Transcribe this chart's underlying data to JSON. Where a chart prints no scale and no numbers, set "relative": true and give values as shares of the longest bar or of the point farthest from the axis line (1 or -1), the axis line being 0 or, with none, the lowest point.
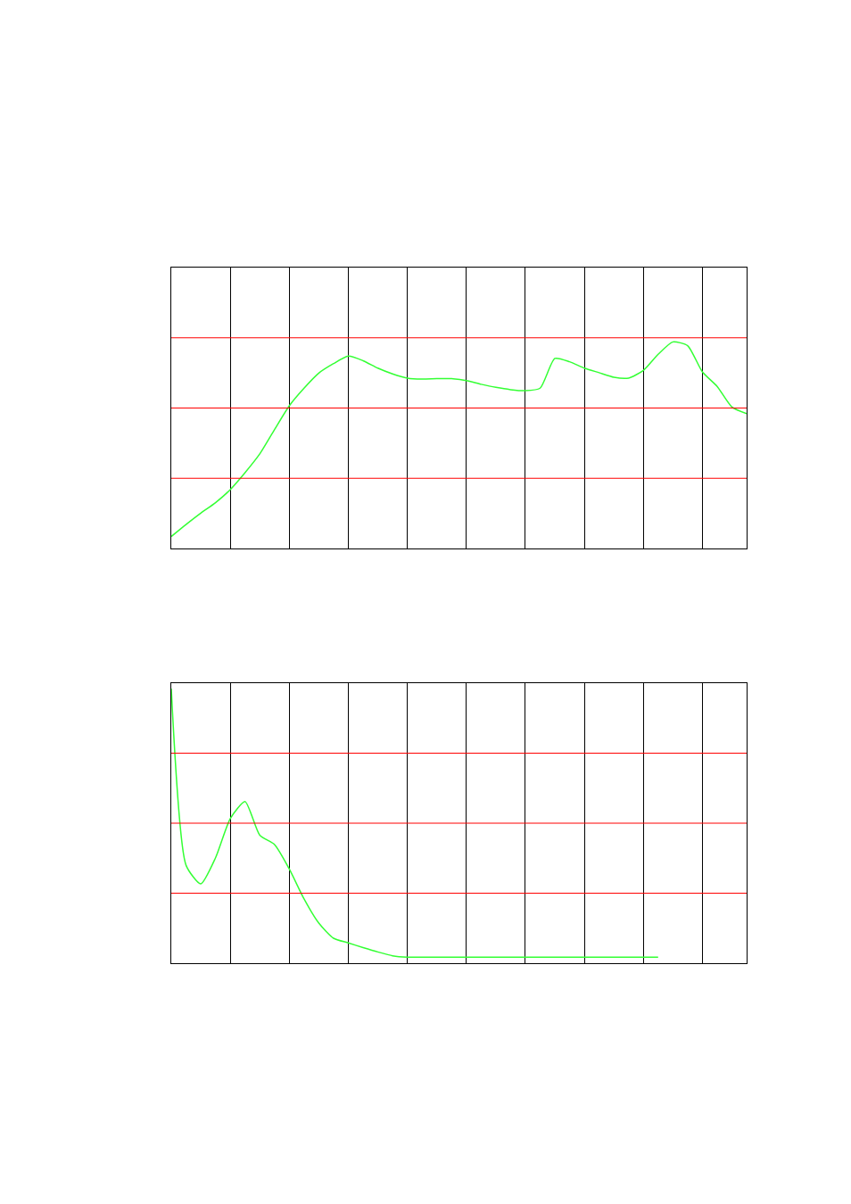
{
  "chart_data": [
    {
      "type": "line",
      "relative": true,
      "grid": "x",
      "categories": [
        null,
        null,
        null,
        null,
        null,
        null,
        null,
        null,
        null,
        null,
        null,
        null,
        null,
        null,
        null,
        null,
        null,
        null,
        null,
        null,
        null,
        null,
        null,
        null,
        null,
        null,
        null,
        null,
        null,
        null,
        null,
        null,
        null,
        null,
        null,
        null,
        null,
        null,
        null,
        null
      ],
      "ref_lines": [
        {
          "axis": "y",
          "value": 0.34,
          "color": "#ff0000"
        },
        {
          "axis": "y",
          "value": 0.68,
          "color": "#ff0000"
        },
        {
          "axis": "y",
          "value": 1.02,
          "color": "#ff0000"
        }
      ],
      "series": [
        {
          "color": "#33ff33",
          "values": [
            0.058,
            0.116,
            0.171,
            0.222,
            0.285,
            0.367,
            0.458,
            0.576,
            0.691,
            0.776,
            0.849,
            0.895,
            0.931,
            0.909,
            0.873,
            0.845,
            0.825,
            0.82,
            0.822,
            0.822,
            0.813,
            0.795,
            0.78,
            0.769,
            0.764,
            0.776,
            0.92,
            0.904,
            0.873,
            0.851,
            0.829,
            0.825,
            0.862,
            0.94,
            1.0,
            0.982,
            0.855,
            0.785,
            0.685,
            0.653
          ]
        }
      ]
    },
    {
      "type": "line",
      "relative": true,
      "grid": "x",
      "categories": [
        null,
        null,
        null,
        null,
        null,
        null,
        null,
        null,
        null,
        null,
        null,
        null,
        null,
        null,
        null,
        null,
        null,
        null,
        null,
        null,
        null,
        null,
        null,
        null,
        null,
        null,
        null,
        null,
        null,
        null,
        null,
        null,
        null,
        null,
        null,
        null,
        null,
        null,
        null,
        null
      ],
      "ref_lines": [
        {
          "axis": "y",
          "value": 0.255,
          "color": "#ff0000"
        },
        {
          "axis": "y",
          "value": 0.51,
          "color": "#ff0000"
        },
        {
          "axis": "y",
          "value": 0.765,
          "color": "#ff0000"
        }
      ],
      "series": [
        {
          "color": "#33ff33",
          "values": [
            1.0,
            0.357,
            0.289,
            0.384,
            0.527,
            0.589,
            0.466,
            0.432,
            0.343,
            0.234,
            0.146,
            0.091,
            0.074,
            0.057,
            0.041,
            0.027,
            0.022,
            0.022,
            0.022,
            0.022,
            0.022,
            0.022,
            0.022,
            0.022,
            0.022,
            0.022,
            0.022,
            0.022,
            0.022,
            0.022,
            0.022,
            0.022,
            0.022,
            0.022,
            null,
            null,
            null,
            null,
            null,
            null
          ]
        }
      ]
    }
  ]
}
